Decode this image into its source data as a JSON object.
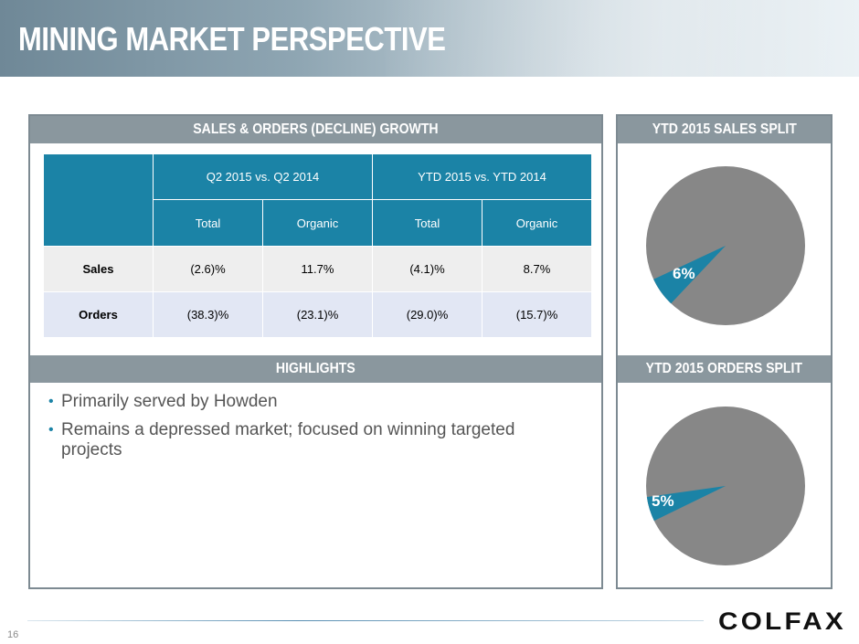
{
  "title": "MINING MARKET PERSPECTIVE",
  "page_number": "16",
  "logo_text": "COLFAX",
  "colors": {
    "accent_blue": "#1b83a6",
    "panel_header": "#8a979e",
    "pie_gray": "#878787"
  },
  "growth_panel": {
    "header": "SALES & ORDERS (DECLINE) GROWTH",
    "groups": [
      "Q2 2015 vs. Q2 2014",
      "YTD 2015 vs. YTD 2014"
    ],
    "subheaders": [
      "Total",
      "Organic",
      "Total",
      "Organic"
    ],
    "rows": [
      {
        "label": "Sales",
        "values": [
          "(2.6)%",
          "11.7%",
          "(4.1)%",
          "8.7%"
        ]
      },
      {
        "label": "Orders",
        "values": [
          "(38.3)%",
          "(23.1)%",
          "(29.0)%",
          "(15.7)%"
        ]
      }
    ]
  },
  "highlights": {
    "header": "HIGHLIGHTS",
    "items": [
      "Primarily served by Howden",
      "Remains a depressed market; focused on winning targeted projects"
    ]
  },
  "sales_split": {
    "header": "YTD 2015 SALES SPLIT",
    "label": "6%",
    "share": 6
  },
  "orders_split": {
    "header": "YTD 2015 ORDERS SPLIT",
    "label": "5%",
    "share": 5
  }
}
